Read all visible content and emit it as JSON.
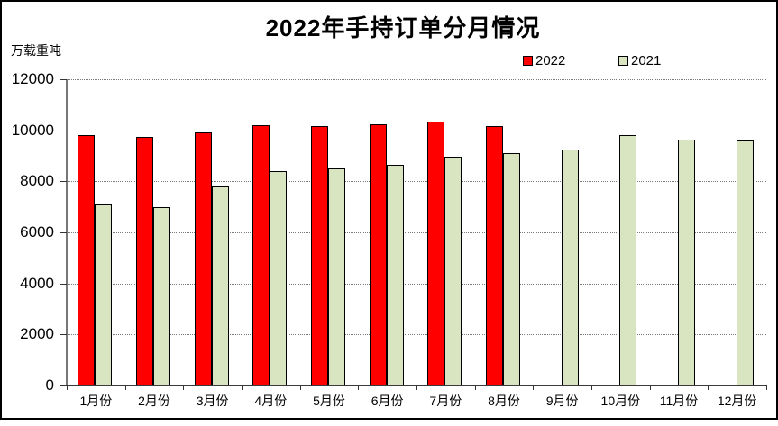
{
  "title": "2022年手持订单分月情况",
  "unit_label": "万载重吨",
  "colors": {
    "series_2022": "#ff0000",
    "series_2021": "#d9e5c1",
    "bar_border": "#000000",
    "gridline": "#7a7a7a",
    "axis": "#3a3a3a",
    "frame_border": "#000000",
    "background": "#ffffff"
  },
  "chart_data": {
    "type": "bar",
    "title": "2022年手持订单分月情况",
    "xlabel": "",
    "ylabel": "万载重吨",
    "categories": [
      "1月份",
      "2月份",
      "3月份",
      "4月份",
      "5月份",
      "6月份",
      "7月份",
      "8月份",
      "9月份",
      "10月份",
      "11月份",
      "12月份"
    ],
    "series": [
      {
        "name": "2022",
        "color": "#ff0000",
        "values": [
          9800,
          9750,
          9900,
          10200,
          10150,
          10250,
          10350,
          10150,
          null,
          null,
          null,
          null
        ]
      },
      {
        "name": "2021",
        "color": "#d9e5c1",
        "values": [
          7100,
          7000,
          7800,
          8400,
          8500,
          8650,
          8950,
          9100,
          9250,
          9800,
          9650,
          9600
        ]
      }
    ],
    "ylim": [
      0,
      12000
    ],
    "yticks": [
      0,
      2000,
      4000,
      6000,
      8000,
      10000,
      12000
    ],
    "grid": "horizontal-dotted",
    "legend_position": "top-right",
    "legend_entries": [
      "2022",
      "2021"
    ]
  }
}
